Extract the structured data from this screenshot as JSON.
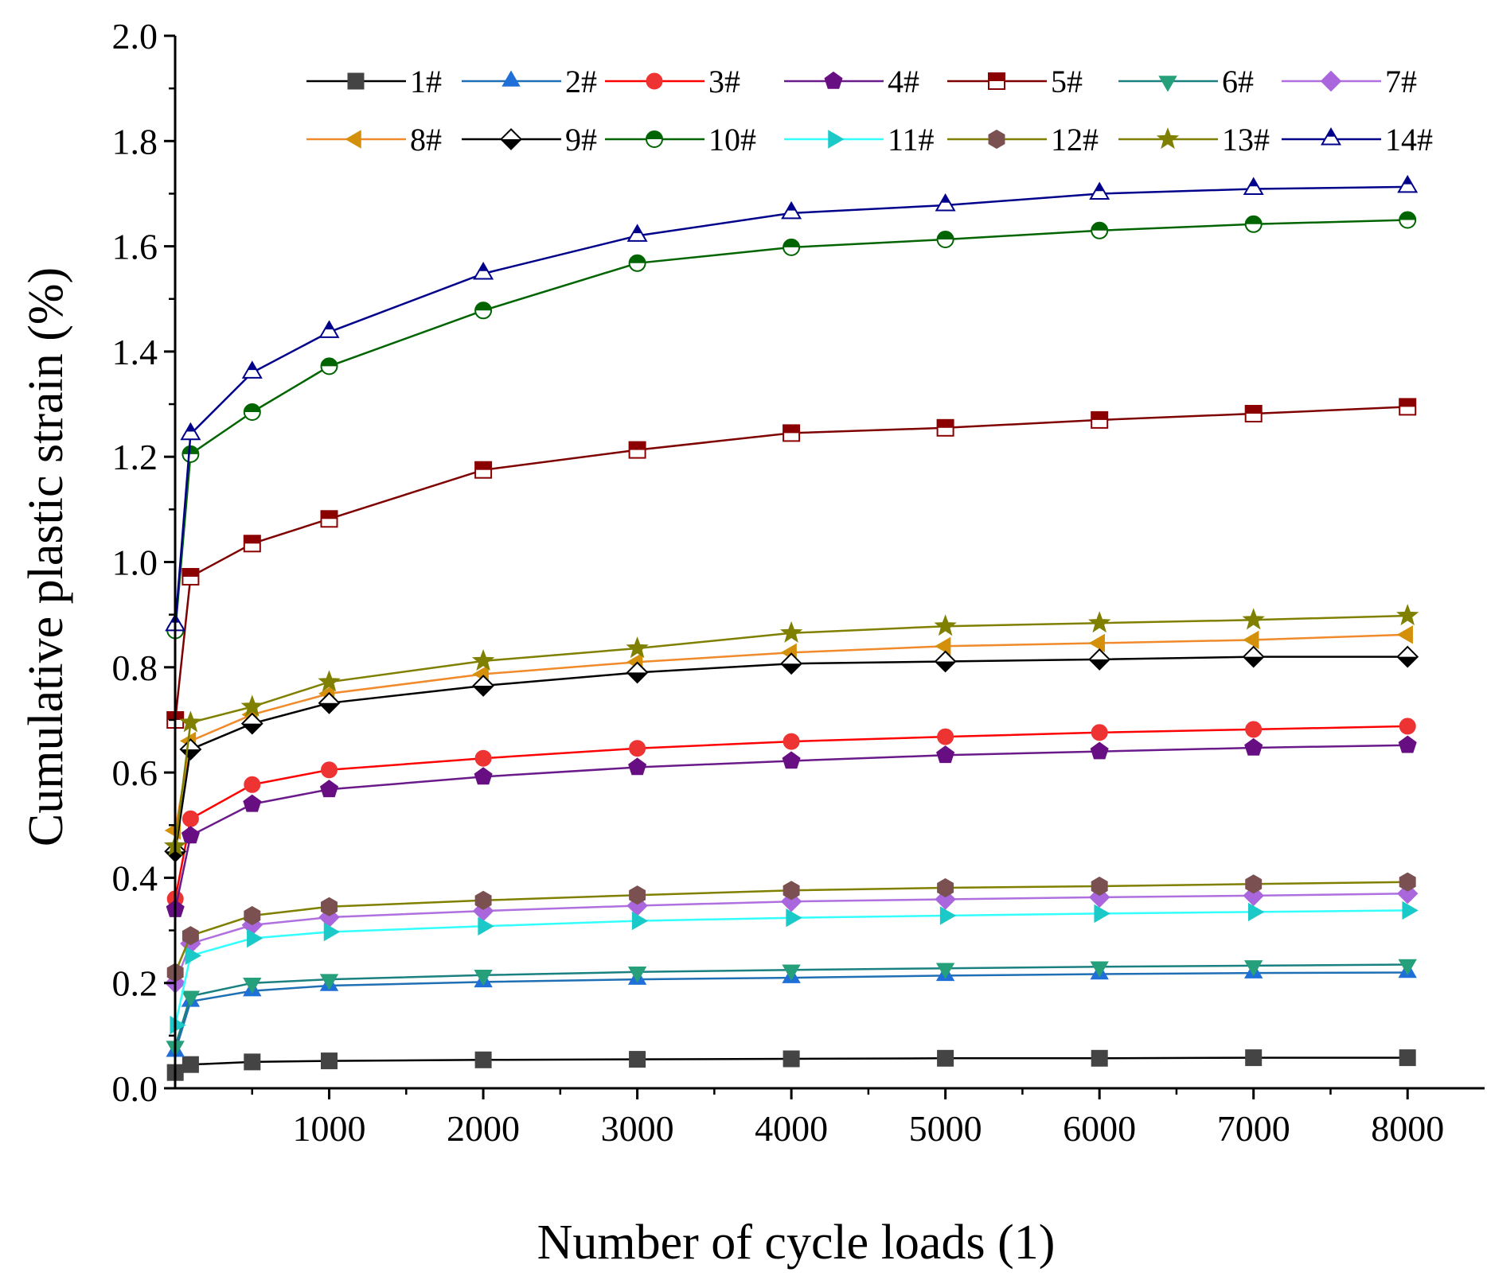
{
  "chart_data": {
    "type": "line",
    "title": "",
    "xlabel": "Number of cycle loads (1)",
    "ylabel": "Cumulative plastic strain (%)",
    "xlim": [
      0,
      8500
    ],
    "ylim": [
      0.0,
      2.0
    ],
    "xticks": [
      1000,
      2000,
      3000,
      4000,
      5000,
      6000,
      7000,
      8000
    ],
    "xtick_labels": [
      "1000",
      "2000",
      "3000",
      "4000",
      "5000",
      "6000",
      "7000",
      "8000"
    ],
    "yticks": [
      0.0,
      0.2,
      0.4,
      0.6,
      0.8,
      1.0,
      1.2,
      1.4,
      1.6,
      1.8,
      2.0
    ],
    "ytick_labels": [
      "0.0",
      "0.2",
      "0.4",
      "0.6",
      "0.8",
      "1.0",
      "1.2",
      "1.4",
      "1.6",
      "1.8",
      "2.0"
    ],
    "grid": false,
    "legend_position": "top-right",
    "x": [
      1,
      100,
      500,
      1000,
      2000,
      3000,
      4000,
      5000,
      6000,
      7000,
      8000
    ],
    "series": [
      {
        "name": "1#",
        "color": "#000000",
        "marker": "square",
        "marker_color": "#444444",
        "values": [
          0.03,
          0.045,
          0.05,
          0.052,
          0.054,
          0.055,
          0.056,
          0.057,
          0.057,
          0.058,
          0.058
        ]
      },
      {
        "name": "2#",
        "color": "#1f6fb4",
        "marker": "triangle-up",
        "marker_color": "#1f6fd8",
        "values": [
          0.07,
          0.165,
          0.185,
          0.195,
          0.202,
          0.207,
          0.21,
          0.214,
          0.217,
          0.219,
          0.22
        ]
      },
      {
        "name": "3#",
        "color": "#ff0000",
        "marker": "circle",
        "marker_color": "#ee3333",
        "values": [
          0.36,
          0.512,
          0.577,
          0.605,
          0.627,
          0.646,
          0.659,
          0.668,
          0.676,
          0.682,
          0.688
        ]
      },
      {
        "name": "4#",
        "color": "#6a1a8a",
        "marker": "pentagon",
        "marker_color": "#660e82",
        "values": [
          0.34,
          0.48,
          0.54,
          0.568,
          0.592,
          0.61,
          0.622,
          0.633,
          0.64,
          0.647,
          0.652
        ]
      },
      {
        "name": "5#",
        "color": "#7f0000",
        "marker": "square-half-top",
        "marker_color": "#8b0000",
        "values": [
          0.7,
          0.972,
          1.035,
          1.082,
          1.175,
          1.213,
          1.245,
          1.255,
          1.27,
          1.282,
          1.295
        ]
      },
      {
        "name": "6#",
        "color": "#1a8080",
        "marker": "triangle-down",
        "marker_color": "#26a07a",
        "values": [
          0.08,
          0.175,
          0.2,
          0.207,
          0.215,
          0.221,
          0.225,
          0.228,
          0.231,
          0.233,
          0.235
        ]
      },
      {
        "name": "7#",
        "color": "#b070e0",
        "marker": "diamond",
        "marker_color": "#aa66dd",
        "values": [
          0.2,
          0.275,
          0.31,
          0.325,
          0.337,
          0.347,
          0.355,
          0.359,
          0.363,
          0.366,
          0.37
        ]
      },
      {
        "name": "8#",
        "color": "#f08a2a",
        "marker": "triangle-left",
        "marker_color": "#d4900a",
        "values": [
          0.49,
          0.66,
          0.71,
          0.75,
          0.787,
          0.81,
          0.828,
          0.84,
          0.846,
          0.852,
          0.862
        ]
      },
      {
        "name": "9#",
        "color": "#000000",
        "marker": "diamond-half",
        "marker_color": "#000000",
        "values": [
          0.45,
          0.644,
          0.693,
          0.732,
          0.765,
          0.79,
          0.807,
          0.811,
          0.815,
          0.82,
          0.82
        ]
      },
      {
        "name": "10#",
        "color": "#006400",
        "marker": "circle-half",
        "marker_color": "#006400",
        "values": [
          0.87,
          1.205,
          1.285,
          1.372,
          1.478,
          1.568,
          1.598,
          1.613,
          1.63,
          1.642,
          1.65
        ]
      },
      {
        "name": "11#",
        "color": "#33ffff",
        "marker": "triangle-right",
        "marker_color": "#1cc9c9",
        "values": [
          0.12,
          0.252,
          0.285,
          0.297,
          0.308,
          0.318,
          0.324,
          0.328,
          0.332,
          0.335,
          0.338
        ]
      },
      {
        "name": "12#",
        "color": "#808000",
        "marker": "hexagon",
        "marker_color": "#7a5050",
        "values": [
          0.22,
          0.29,
          0.328,
          0.345,
          0.357,
          0.367,
          0.376,
          0.381,
          0.384,
          0.388,
          0.392
        ]
      },
      {
        "name": "13#",
        "color": "#808000",
        "marker": "star",
        "marker_color": "#808000",
        "values": [
          0.46,
          0.695,
          0.725,
          0.772,
          0.812,
          0.836,
          0.865,
          0.878,
          0.884,
          0.89,
          0.898
        ]
      },
      {
        "name": "14#",
        "color": "#00008b",
        "marker": "triangle-half",
        "marker_color": "#00008b",
        "values": [
          0.88,
          1.243,
          1.36,
          1.437,
          1.548,
          1.62,
          1.663,
          1.678,
          1.7,
          1.709,
          1.713
        ]
      }
    ]
  }
}
